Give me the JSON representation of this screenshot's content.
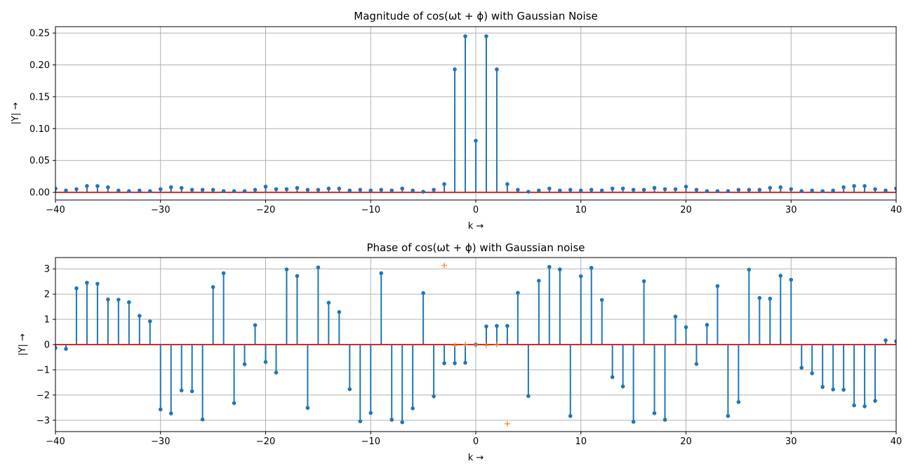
{
  "chart_data": [
    {
      "type": "stem",
      "title": "Magnitude of cos(ωt + ϕ) with Gaussian Noise",
      "xlabel": "k →",
      "ylabel": "|Y| →",
      "xlim": [
        -40,
        40
      ],
      "ylim": [
        -0.012,
        0.26
      ],
      "xticks": [
        -40,
        -30,
        -20,
        -10,
        0,
        10,
        20,
        30,
        40
      ],
      "yticks": [
        0.0,
        0.05,
        0.1,
        0.15,
        0.2,
        0.25
      ],
      "ytick_labels": [
        "0.00",
        "0.05",
        "0.10",
        "0.15",
        "0.20",
        "0.25"
      ],
      "grid": true,
      "x": [
        -40,
        -39,
        -38,
        -37,
        -36,
        -35,
        -34,
        -33,
        -32,
        -31,
        -30,
        -29,
        -28,
        -27,
        -26,
        -25,
        -24,
        -23,
        -22,
        -21,
        -20,
        -19,
        -18,
        -17,
        -16,
        -15,
        -14,
        -13,
        -12,
        -11,
        -10,
        -9,
        -8,
        -7,
        -6,
        -5,
        -4,
        -3,
        -2,
        -1,
        0,
        1,
        2,
        3,
        4,
        5,
        6,
        7,
        8,
        9,
        10,
        11,
        12,
        13,
        14,
        15,
        16,
        17,
        18,
        19,
        20,
        21,
        22,
        23,
        24,
        25,
        26,
        27,
        28,
        29,
        30,
        31,
        32,
        33,
        34,
        35,
        36,
        37,
        38,
        39,
        40
      ],
      "values": [
        0.006,
        0.003,
        0.005,
        0.01,
        0.01,
        0.008,
        0.003,
        0.002,
        0.003,
        0.002,
        0.005,
        0.008,
        0.007,
        0.004,
        0.004,
        0.004,
        0.002,
        0.002,
        0.002,
        0.004,
        0.009,
        0.005,
        0.005,
        0.007,
        0.004,
        0.004,
        0.006,
        0.006,
        0.003,
        0.004,
        0.003,
        0.004,
        0.003,
        0.006,
        0.003,
        0.001,
        0.004,
        0.013,
        0.193,
        0.245,
        0.081,
        0.245,
        0.193,
        0.013,
        0.004,
        0.001,
        0.003,
        0.006,
        0.003,
        0.004,
        0.003,
        0.004,
        0.003,
        0.006,
        0.006,
        0.004,
        0.004,
        0.007,
        0.005,
        0.005,
        0.009,
        0.004,
        0.002,
        0.002,
        0.002,
        0.004,
        0.004,
        0.004,
        0.007,
        0.008,
        0.005,
        0.002,
        0.003,
        0.002,
        0.003,
        0.008,
        0.01,
        0.01,
        0.005,
        0.003,
        0.006
      ]
    },
    {
      "type": "stem",
      "title": "Phase of cos(ωt + ϕ) with Gaussian noise",
      "xlabel": "k →",
      "ylabel": "|Y| →",
      "xlim": [
        -40,
        40
      ],
      "ylim": [
        -3.45,
        3.45
      ],
      "xticks": [
        -40,
        -30,
        -20,
        -10,
        0,
        10,
        20,
        30,
        40
      ],
      "yticks": [
        -3,
        -2,
        -1,
        0,
        1,
        2,
        3
      ],
      "grid": true,
      "x": [
        -40,
        -39,
        -38,
        -37,
        -36,
        -35,
        -34,
        -33,
        -32,
        -31,
        -30,
        -29,
        -28,
        -27,
        -26,
        -25,
        -24,
        -23,
        -22,
        -21,
        -20,
        -19,
        -18,
        -17,
        -16,
        -15,
        -14,
        -13,
        -12,
        -11,
        -10,
        -9,
        -8,
        -7,
        -6,
        -5,
        -4,
        -3,
        -2,
        -1,
        0,
        1,
        2,
        3,
        4,
        5,
        6,
        7,
        8,
        9,
        10,
        11,
        12,
        13,
        14,
        15,
        16,
        17,
        18,
        19,
        20,
        21,
        22,
        23,
        24,
        25,
        26,
        27,
        28,
        29,
        30,
        31,
        32,
        33,
        34,
        35,
        36,
        37,
        38,
        39,
        40
      ],
      "values": [
        -0.13,
        -0.17,
        2.23,
        2.45,
        2.41,
        1.79,
        1.78,
        1.68,
        1.14,
        0.92,
        -2.57,
        -2.73,
        -1.82,
        -1.85,
        -2.97,
        2.28,
        2.83,
        -2.32,
        -0.78,
        0.77,
        -0.69,
        -1.11,
        2.98,
        2.72,
        -2.51,
        3.06,
        1.66,
        1.29,
        -1.77,
        -3.04,
        -2.71,
        2.83,
        -2.98,
        -3.08,
        -2.53,
        2.04,
        -2.05,
        -0.74,
        -0.74,
        -0.72,
        0.0,
        0.72,
        0.74,
        0.74,
        2.05,
        -2.04,
        2.53,
        3.08,
        2.98,
        -2.83,
        2.71,
        3.04,
        1.77,
        -1.29,
        -1.66,
        -3.06,
        2.51,
        -2.72,
        -2.98,
        1.11,
        0.69,
        -0.77,
        0.78,
        2.32,
        -2.83,
        -2.28,
        2.97,
        1.85,
        1.82,
        2.73,
        2.57,
        -0.92,
        -1.14,
        -1.68,
        -1.78,
        -1.79,
        -2.41,
        -2.45,
        -2.23,
        0.17,
        0.13
      ],
      "marker_series": {
        "x": [
          -3,
          -2,
          -1,
          0,
          1,
          2,
          3
        ],
        "values": [
          3.14,
          -0.03,
          0.0,
          -0.02,
          -0.03,
          0.0,
          -3.14
        ]
      }
    }
  ]
}
